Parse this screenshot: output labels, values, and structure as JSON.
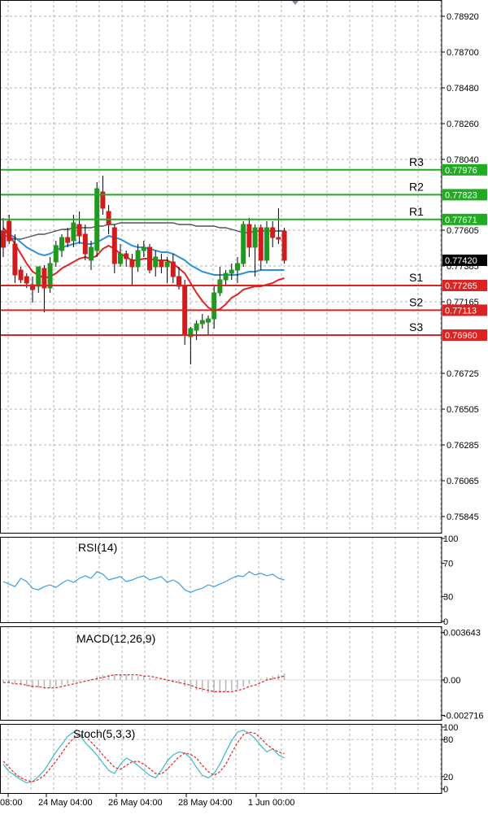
{
  "chart_data": [
    {
      "type": "candlestick",
      "name": "price",
      "x_labels": [
        "08:00",
        "24 May 04:00",
        "26 May 04:00",
        "28 May 04:00",
        "1 Jun 00:00"
      ],
      "y_ticks": [
        "0.78920",
        "0.78700",
        "0.78480",
        "0.78260",
        "0.78040",
        "0.77605",
        "0.77385",
        "0.77165",
        "0.76725",
        "0.76505",
        "0.76285",
        "0.76065",
        "0.75845"
      ],
      "ylim": [
        0.7574,
        0.7902
      ],
      "levels": [
        {
          "label": "R3",
          "value": 0.77976,
          "price_label": "0.77976",
          "color": "#22aa22"
        },
        {
          "label": "R2",
          "value": 0.77823,
          "price_label": "0.77823",
          "color": "#22aa22"
        },
        {
          "label": "R1",
          "value": 0.77671,
          "price_label": "0.77671",
          "color": "#22aa22"
        },
        {
          "label": "S1",
          "value": 0.77265,
          "price_label": "0.77265",
          "color": "#dd2222"
        },
        {
          "label": "S2",
          "value": 0.77113,
          "price_label": "0.77113",
          "color": "#dd2222"
        },
        {
          "label": "S3",
          "value": 0.7696,
          "price_label": "0.76960",
          "color": "#dd2222"
        }
      ],
      "current_price": {
        "value": 0.7742,
        "label": "0.77420"
      },
      "candles": [
        {
          "o": 0.776,
          "h": 0.7768,
          "l": 0.7744,
          "c": 0.775
        },
        {
          "o": 0.7766,
          "h": 0.777,
          "l": 0.7752,
          "c": 0.7754
        },
        {
          "o": 0.7752,
          "h": 0.7758,
          "l": 0.7728,
          "c": 0.7733
        },
        {
          "o": 0.7736,
          "h": 0.7738,
          "l": 0.7728,
          "c": 0.773
        },
        {
          "o": 0.7732,
          "h": 0.7734,
          "l": 0.7725,
          "c": 0.7728
        },
        {
          "o": 0.7727,
          "h": 0.7732,
          "l": 0.7716,
          "c": 0.7724
        },
        {
          "o": 0.7726,
          "h": 0.7738,
          "l": 0.7722,
          "c": 0.7738
        },
        {
          "o": 0.7737,
          "h": 0.7739,
          "l": 0.771,
          "c": 0.7725
        },
        {
          "o": 0.7725,
          "h": 0.7744,
          "l": 0.7722,
          "c": 0.774
        },
        {
          "o": 0.7741,
          "h": 0.7754,
          "l": 0.7738,
          "c": 0.7751
        },
        {
          "o": 0.7748,
          "h": 0.7758,
          "l": 0.7744,
          "c": 0.7756
        },
        {
          "o": 0.7756,
          "h": 0.7762,
          "l": 0.775,
          "c": 0.7753
        },
        {
          "o": 0.7754,
          "h": 0.777,
          "l": 0.775,
          "c": 0.7765
        },
        {
          "o": 0.7764,
          "h": 0.7772,
          "l": 0.7752,
          "c": 0.7757
        },
        {
          "o": 0.7758,
          "h": 0.7764,
          "l": 0.7742,
          "c": 0.7746
        },
        {
          "o": 0.7742,
          "h": 0.7754,
          "l": 0.7736,
          "c": 0.775
        },
        {
          "o": 0.7748,
          "h": 0.779,
          "l": 0.7744,
          "c": 0.7786
        },
        {
          "o": 0.7784,
          "h": 0.7794,
          "l": 0.777,
          "c": 0.7774
        },
        {
          "o": 0.7772,
          "h": 0.7776,
          "l": 0.7758,
          "c": 0.7764
        },
        {
          "o": 0.7762,
          "h": 0.7764,
          "l": 0.7734,
          "c": 0.774
        },
        {
          "o": 0.774,
          "h": 0.7752,
          "l": 0.7738,
          "c": 0.7746
        },
        {
          "o": 0.7746,
          "h": 0.7748,
          "l": 0.7738,
          "c": 0.7743
        },
        {
          "o": 0.7742,
          "h": 0.7746,
          "l": 0.7726,
          "c": 0.7738
        },
        {
          "o": 0.7738,
          "h": 0.7752,
          "l": 0.7735,
          "c": 0.7748
        },
        {
          "o": 0.7748,
          "h": 0.7754,
          "l": 0.7744,
          "c": 0.775
        },
        {
          "o": 0.775,
          "h": 0.7752,
          "l": 0.7734,
          "c": 0.7736
        },
        {
          "o": 0.7738,
          "h": 0.7748,
          "l": 0.7732,
          "c": 0.7744
        },
        {
          "o": 0.7742,
          "h": 0.7746,
          "l": 0.7734,
          "c": 0.7738
        },
        {
          "o": 0.7738,
          "h": 0.7744,
          "l": 0.7728,
          "c": 0.7741
        },
        {
          "o": 0.7741,
          "h": 0.7746,
          "l": 0.7728,
          "c": 0.7732
        },
        {
          "o": 0.7732,
          "h": 0.7738,
          "l": 0.7724,
          "c": 0.7726
        },
        {
          "o": 0.7726,
          "h": 0.773,
          "l": 0.769,
          "c": 0.7696
        },
        {
          "o": 0.7695,
          "h": 0.7701,
          "l": 0.7678,
          "c": 0.77
        },
        {
          "o": 0.7699,
          "h": 0.7705,
          "l": 0.7693,
          "c": 0.7703
        },
        {
          "o": 0.7703,
          "h": 0.7709,
          "l": 0.77,
          "c": 0.7705
        },
        {
          "o": 0.7704,
          "h": 0.7708,
          "l": 0.7696,
          "c": 0.7706
        },
        {
          "o": 0.7706,
          "h": 0.7726,
          "l": 0.77,
          "c": 0.7722
        },
        {
          "o": 0.7722,
          "h": 0.7738,
          "l": 0.772,
          "c": 0.773
        },
        {
          "o": 0.773,
          "h": 0.7736,
          "l": 0.7726,
          "c": 0.7734
        },
        {
          "o": 0.7734,
          "h": 0.774,
          "l": 0.773,
          "c": 0.7736
        },
        {
          "o": 0.7736,
          "h": 0.7744,
          "l": 0.7728,
          "c": 0.774
        },
        {
          "o": 0.774,
          "h": 0.7766,
          "l": 0.7738,
          "c": 0.7764
        },
        {
          "o": 0.7764,
          "h": 0.7768,
          "l": 0.7744,
          "c": 0.775
        },
        {
          "o": 0.775,
          "h": 0.7764,
          "l": 0.7732,
          "c": 0.7762
        },
        {
          "o": 0.7762,
          "h": 0.7764,
          "l": 0.7736,
          "c": 0.7742
        },
        {
          "o": 0.7742,
          "h": 0.7766,
          "l": 0.774,
          "c": 0.7762
        },
        {
          "o": 0.7762,
          "h": 0.7766,
          "l": 0.775,
          "c": 0.7756
        },
        {
          "o": 0.7756,
          "h": 0.7774,
          "l": 0.7752,
          "c": 0.7755
        },
        {
          "o": 0.776,
          "h": 0.7762,
          "l": 0.774,
          "c": 0.7742
        }
      ],
      "ma_slow": [
        0.7758,
        0.7756,
        0.7755,
        0.7755,
        0.7756,
        0.7757,
        0.7758,
        0.7758,
        0.7759,
        0.776,
        0.7761,
        0.7761,
        0.7762,
        0.7762,
        0.7762,
        0.7762,
        0.7763,
        0.7763,
        0.7764,
        0.7764,
        0.7765,
        0.7765,
        0.7765,
        0.7765,
        0.7765,
        0.7765,
        0.7765,
        0.7765,
        0.7765,
        0.7765,
        0.7764,
        0.7764,
        0.7764,
        0.7763,
        0.7763,
        0.7763,
        0.7763,
        0.7762,
        0.7762,
        0.7761,
        0.776,
        0.7759,
        0.7759,
        0.776,
        0.776,
        0.776,
        0.776,
        0.776,
        0.776
      ],
      "ma_mid": [
        0.776,
        0.7758,
        0.7756,
        0.7753,
        0.775,
        0.7748,
        0.7746,
        0.7745,
        0.7746,
        0.7748,
        0.775,
        0.7751,
        0.7752,
        0.7753,
        0.7752,
        0.7752,
        0.7753,
        0.7755,
        0.7757,
        0.7756,
        0.7755,
        0.7753,
        0.7751,
        0.775,
        0.775,
        0.7749,
        0.7748,
        0.7747,
        0.7747,
        0.7746,
        0.7744,
        0.7742,
        0.7739,
        0.7737,
        0.7735,
        0.7734,
        0.7733,
        0.7733,
        0.7733,
        0.7733,
        0.7733,
        0.7734,
        0.7735,
        0.7735,
        0.7736,
        0.7736,
        0.7736,
        0.7736,
        0.7736
      ],
      "ma_fast": [
        0.7762,
        0.7758,
        0.7752,
        0.7746,
        0.774,
        0.7735,
        0.7733,
        0.7731,
        0.7732,
        0.7734,
        0.7737,
        0.7739,
        0.7741,
        0.7743,
        0.7744,
        0.7743,
        0.7745,
        0.7749,
        0.7751,
        0.7749,
        0.7746,
        0.7744,
        0.7742,
        0.7742,
        0.7743,
        0.7743,
        0.7742,
        0.7742,
        0.7742,
        0.774,
        0.7737,
        0.7734,
        0.7728,
        0.7722,
        0.7717,
        0.7713,
        0.7711,
        0.7712,
        0.7715,
        0.7719,
        0.7721,
        0.7724,
        0.7725,
        0.7726,
        0.7726,
        0.7727,
        0.7728,
        0.773,
        0.7731
      ]
    },
    {
      "type": "line",
      "name": "rsi",
      "title": "RSI(14)",
      "y_ticks": [
        "100",
        "70",
        "30",
        "0"
      ],
      "ylim": [
        0,
        100
      ],
      "values": [
        48,
        45,
        42,
        52,
        48,
        40,
        38,
        42,
        44,
        41,
        46,
        50,
        47,
        52,
        55,
        52,
        60,
        57,
        50,
        52,
        54,
        48,
        50,
        53,
        55,
        50,
        52,
        54,
        47,
        50,
        46,
        38,
        35,
        38,
        40,
        44,
        42,
        45,
        48,
        52,
        55,
        54,
        60,
        56,
        58,
        55,
        57,
        52,
        50
      ]
    },
    {
      "type": "bar",
      "name": "macd",
      "title": "MACD(12,26,9)",
      "y_ticks": [
        "0.003643",
        "0.00",
        "-0.002716"
      ],
      "ylim": [
        -0.003,
        0.004
      ],
      "values": [
        -0.0002,
        -0.0002,
        -0.0003,
        -0.0004,
        -0.0005,
        -0.0006,
        -0.0006,
        -0.0006,
        -0.0006,
        -0.0005,
        -0.0004,
        -0.0003,
        -0.0002,
        -0.0001,
        0.0,
        0.0001,
        0.0003,
        0.0004,
        0.0004,
        0.0004,
        0.0004,
        0.0004,
        0.0003,
        0.0003,
        0.0003,
        0.0002,
        0.0001,
        0.0,
        -0.0001,
        -0.0002,
        -0.0003,
        -0.0005,
        -0.0007,
        -0.0008,
        -0.0009,
        -0.001,
        -0.001,
        -0.001,
        -0.0009,
        -0.0008,
        -0.0007,
        -0.0005,
        -0.0003,
        -0.0001,
        0.0001,
        0.0002,
        0.0003,
        0.0004,
        0.0005
      ],
      "signal": [
        -0.0002,
        -0.0002,
        -0.0003,
        -0.0003,
        -0.0004,
        -0.0005,
        -0.0005,
        -0.0006,
        -0.0006,
        -0.0006,
        -0.0005,
        -0.0004,
        -0.0003,
        -0.0002,
        -0.0001,
        0.0,
        0.0001,
        0.0002,
        0.0003,
        0.0004,
        0.0004,
        0.0004,
        0.0004,
        0.0004,
        0.0003,
        0.0003,
        0.0002,
        0.0001,
        0.0,
        -0.0001,
        -0.0002,
        -0.0003,
        -0.0004,
        -0.0006,
        -0.0007,
        -0.0008,
        -0.0009,
        -0.0009,
        -0.0009,
        -0.0009,
        -0.0008,
        -0.0007,
        -0.0005,
        -0.0004,
        -0.0002,
        0.0,
        0.0001,
        0.0002,
        0.0003
      ]
    },
    {
      "type": "line",
      "name": "stoch",
      "title": "Stoch(5,3,3)",
      "y_ticks": [
        "100",
        "80",
        "20",
        "0"
      ],
      "ylim": [
        0,
        100
      ],
      "main": [
        40,
        28,
        22,
        15,
        10,
        12,
        20,
        30,
        45,
        60,
        72,
        85,
        92,
        88,
        75,
        65,
        55,
        42,
        30,
        25,
        40,
        50,
        45,
        38,
        30,
        22,
        18,
        30,
        45,
        55,
        60,
        58,
        50,
        35,
        22,
        18,
        25,
        40,
        60,
        78,
        92,
        95,
        90,
        82,
        70,
        60,
        65,
        55,
        50
      ],
      "signal": [
        45,
        35,
        25,
        18,
        14,
        12,
        15,
        22,
        33,
        45,
        58,
        72,
        82,
        88,
        85,
        76,
        66,
        55,
        45,
        35,
        32,
        38,
        44,
        45,
        40,
        33,
        25,
        24,
        32,
        42,
        52,
        58,
        56,
        50,
        38,
        28,
        22,
        28,
        40,
        58,
        75,
        88,
        92,
        90,
        82,
        72,
        65,
        60,
        57
      ]
    }
  ]
}
